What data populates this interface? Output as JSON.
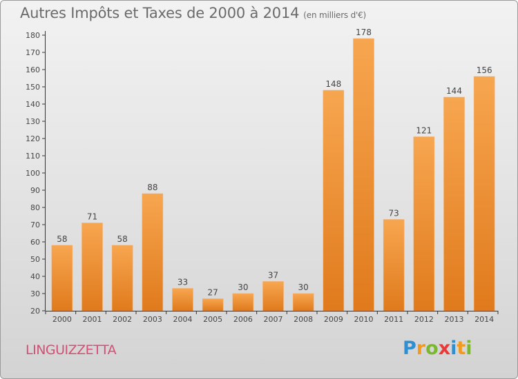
{
  "title": "Autres Impôts et Taxes de 2000 à 2014",
  "unit": "(en milliers d'€)",
  "commune": "LINGUIZZETTA",
  "brand": {
    "letters": [
      {
        "ch": "P",
        "color": "#2f8fd0"
      },
      {
        "ch": "r",
        "color": "#f39a1e"
      },
      {
        "ch": "o",
        "color": "#7cb82f"
      },
      {
        "ch": "x",
        "color": "#e83a3a"
      },
      {
        "ch": "i",
        "color": "#2f8fd0"
      },
      {
        "ch": "t",
        "color": "#f39a1e"
      },
      {
        "ch": "i",
        "color": "#7cb82f"
      }
    ]
  },
  "colors": {
    "bar_top": "#f7a650",
    "bar_bottom": "#e07a1c",
    "axis": "#333333",
    "text": "#444444"
  },
  "chart_data": {
    "type": "bar",
    "title": "Autres Impôts et Taxes de 2000 à 2014",
    "categories": [
      "2000",
      "2001",
      "2002",
      "2003",
      "2004",
      "2005",
      "2006",
      "2007",
      "2008",
      "2009",
      "2010",
      "2011",
      "2012",
      "2013",
      "2014"
    ],
    "values": [
      58,
      71,
      58,
      88,
      33,
      27,
      30,
      37,
      30,
      148,
      178,
      73,
      121,
      144,
      156
    ],
    "ylim": [
      20,
      180
    ],
    "yticks": [
      20,
      30,
      40,
      50,
      60,
      70,
      80,
      90,
      100,
      110,
      120,
      130,
      140,
      150,
      160,
      170,
      180
    ],
    "grid": false,
    "data_labels": true
  }
}
